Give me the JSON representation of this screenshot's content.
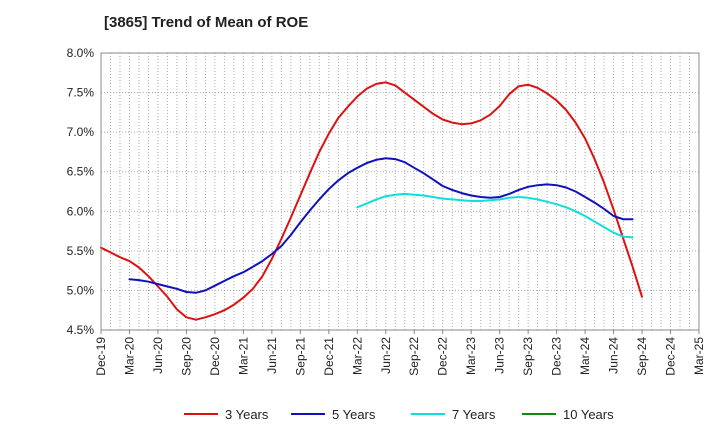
{
  "chart_data": {
    "type": "line",
    "title": "[3865]  Trend of Mean of ROE",
    "xlabel": "",
    "ylabel": "",
    "x_ticks": [
      "Dec-19",
      "Mar-20",
      "Jun-20",
      "Sep-20",
      "Dec-20",
      "Mar-21",
      "Jun-21",
      "Sep-21",
      "Dec-21",
      "Mar-22",
      "Jun-22",
      "Sep-22",
      "Dec-22",
      "Mar-23",
      "Jun-23",
      "Sep-23",
      "Dec-23",
      "Mar-24",
      "Jun-24",
      "Sep-24",
      "Dec-24",
      "Mar-25"
    ],
    "y_ticks": [
      "4.5%",
      "5.0%",
      "5.5%",
      "6.0%",
      "6.5%",
      "7.0%",
      "7.5%",
      "8.0%"
    ],
    "ylim": [
      4.5,
      8.0
    ],
    "grid": true,
    "legend_position": "bottom",
    "series": [
      {
        "name": "3 Years",
        "color": "#dd1111",
        "points": [
          [
            "Dec-19",
            5.54
          ],
          [
            "Jan-20",
            5.48
          ],
          [
            "Feb-20",
            5.42
          ],
          [
            "Mar-20",
            5.37
          ],
          [
            "Apr-20",
            5.29
          ],
          [
            "May-20",
            5.18
          ],
          [
            "Jun-20",
            5.05
          ],
          [
            "Jul-20",
            4.92
          ],
          [
            "Aug-20",
            4.76
          ],
          [
            "Sep-20",
            4.66
          ],
          [
            "Oct-20",
            4.63
          ],
          [
            "Nov-20",
            4.66
          ],
          [
            "Dec-20",
            4.7
          ],
          [
            "Jan-21",
            4.75
          ],
          [
            "Feb-21",
            4.82
          ],
          [
            "Mar-21",
            4.91
          ],
          [
            "Apr-21",
            5.02
          ],
          [
            "May-21",
            5.18
          ],
          [
            "Jun-21",
            5.4
          ],
          [
            "Jul-21",
            5.65
          ],
          [
            "Aug-21",
            5.92
          ],
          [
            "Sep-21",
            6.2
          ],
          [
            "Oct-21",
            6.48
          ],
          [
            "Nov-21",
            6.75
          ],
          [
            "Dec-21",
            6.98
          ],
          [
            "Jan-22",
            7.18
          ],
          [
            "Feb-22",
            7.32
          ],
          [
            "Mar-22",
            7.45
          ],
          [
            "Apr-22",
            7.55
          ],
          [
            "May-22",
            7.61
          ],
          [
            "Jun-22",
            7.63
          ],
          [
            "Jul-22",
            7.59
          ],
          [
            "Aug-22",
            7.5
          ],
          [
            "Sep-22",
            7.41
          ],
          [
            "Oct-22",
            7.32
          ],
          [
            "Nov-22",
            7.23
          ],
          [
            "Dec-22",
            7.16
          ],
          [
            "Jan-23",
            7.12
          ],
          [
            "Feb-23",
            7.1
          ],
          [
            "Mar-23",
            7.11
          ],
          [
            "Apr-23",
            7.15
          ],
          [
            "May-23",
            7.22
          ],
          [
            "Jun-23",
            7.33
          ],
          [
            "Jul-23",
            7.48
          ],
          [
            "Aug-23",
            7.58
          ],
          [
            "Sep-23",
            7.6
          ],
          [
            "Oct-23",
            7.56
          ],
          [
            "Nov-23",
            7.49
          ],
          [
            "Dec-23",
            7.4
          ],
          [
            "Jan-24",
            7.28
          ],
          [
            "Feb-24",
            7.12
          ],
          [
            "Mar-24",
            6.92
          ],
          [
            "Apr-24",
            6.66
          ],
          [
            "May-24",
            6.36
          ],
          [
            "Jun-24",
            6.02
          ],
          [
            "Jul-24",
            5.66
          ],
          [
            "Aug-24",
            5.3
          ],
          [
            "Sep-24",
            4.92
          ]
        ]
      },
      {
        "name": "5 Years",
        "color": "#1111bb",
        "points": [
          [
            "Mar-20",
            5.14
          ],
          [
            "Apr-20",
            5.13
          ],
          [
            "May-20",
            5.11
          ],
          [
            "Jun-20",
            5.08
          ],
          [
            "Jul-20",
            5.05
          ],
          [
            "Aug-20",
            5.02
          ],
          [
            "Sep-20",
            4.98
          ],
          [
            "Oct-20",
            4.97
          ],
          [
            "Nov-20",
            5.0
          ],
          [
            "Dec-20",
            5.06
          ],
          [
            "Jan-21",
            5.12
          ],
          [
            "Feb-21",
            5.18
          ],
          [
            "Mar-21",
            5.23
          ],
          [
            "Apr-21",
            5.3
          ],
          [
            "May-21",
            5.37
          ],
          [
            "Jun-21",
            5.46
          ],
          [
            "Jul-21",
            5.56
          ],
          [
            "Aug-21",
            5.7
          ],
          [
            "Sep-21",
            5.86
          ],
          [
            "Oct-21",
            6.01
          ],
          [
            "Nov-21",
            6.15
          ],
          [
            "Dec-21",
            6.28
          ],
          [
            "Jan-22",
            6.39
          ],
          [
            "Feb-22",
            6.48
          ],
          [
            "Mar-22",
            6.55
          ],
          [
            "Apr-22",
            6.61
          ],
          [
            "May-22",
            6.65
          ],
          [
            "Jun-22",
            6.67
          ],
          [
            "Jul-22",
            6.66
          ],
          [
            "Aug-22",
            6.62
          ],
          [
            "Sep-22",
            6.55
          ],
          [
            "Oct-22",
            6.48
          ],
          [
            "Nov-22",
            6.4
          ],
          [
            "Dec-22",
            6.32
          ],
          [
            "Jan-23",
            6.27
          ],
          [
            "Feb-23",
            6.23
          ],
          [
            "Mar-23",
            6.2
          ],
          [
            "Apr-23",
            6.18
          ],
          [
            "May-23",
            6.17
          ],
          [
            "Jun-23",
            6.18
          ],
          [
            "Jul-23",
            6.22
          ],
          [
            "Aug-23",
            6.27
          ],
          [
            "Sep-23",
            6.31
          ],
          [
            "Oct-23",
            6.33
          ],
          [
            "Nov-23",
            6.34
          ],
          [
            "Dec-23",
            6.33
          ],
          [
            "Jan-24",
            6.3
          ],
          [
            "Feb-24",
            6.25
          ],
          [
            "Mar-24",
            6.18
          ],
          [
            "Apr-24",
            6.11
          ],
          [
            "May-24",
            6.03
          ],
          [
            "Jun-24",
            5.94
          ],
          [
            "Jul-24",
            5.9
          ],
          [
            "Aug-24",
            5.9
          ]
        ]
      },
      {
        "name": "7 Years",
        "color": "#11dddd",
        "points": [
          [
            "Mar-22",
            6.05
          ],
          [
            "Apr-22",
            6.1
          ],
          [
            "May-22",
            6.15
          ],
          [
            "Jun-22",
            6.19
          ],
          [
            "Jul-22",
            6.21
          ],
          [
            "Aug-22",
            6.22
          ],
          [
            "Sep-22",
            6.21
          ],
          [
            "Oct-22",
            6.2
          ],
          [
            "Nov-22",
            6.18
          ],
          [
            "Dec-22",
            6.16
          ],
          [
            "Jan-23",
            6.15
          ],
          [
            "Feb-23",
            6.14
          ],
          [
            "Mar-23",
            6.13
          ],
          [
            "Apr-23",
            6.13
          ],
          [
            "May-23",
            6.14
          ],
          [
            "Jun-23",
            6.15
          ],
          [
            "Jul-23",
            6.17
          ],
          [
            "Aug-23",
            6.18
          ],
          [
            "Sep-23",
            6.17
          ],
          [
            "Oct-23",
            6.15
          ],
          [
            "Nov-23",
            6.12
          ],
          [
            "Dec-23",
            6.09
          ],
          [
            "Jan-24",
            6.05
          ],
          [
            "Feb-24",
            6.0
          ],
          [
            "Mar-24",
            5.94
          ],
          [
            "Apr-24",
            5.87
          ],
          [
            "May-24",
            5.8
          ],
          [
            "Jun-24",
            5.73
          ],
          [
            "Jul-24",
            5.68
          ],
          [
            "Aug-24",
            5.67
          ]
        ]
      },
      {
        "name": "10 Years",
        "color": "#118811",
        "points": []
      }
    ]
  }
}
